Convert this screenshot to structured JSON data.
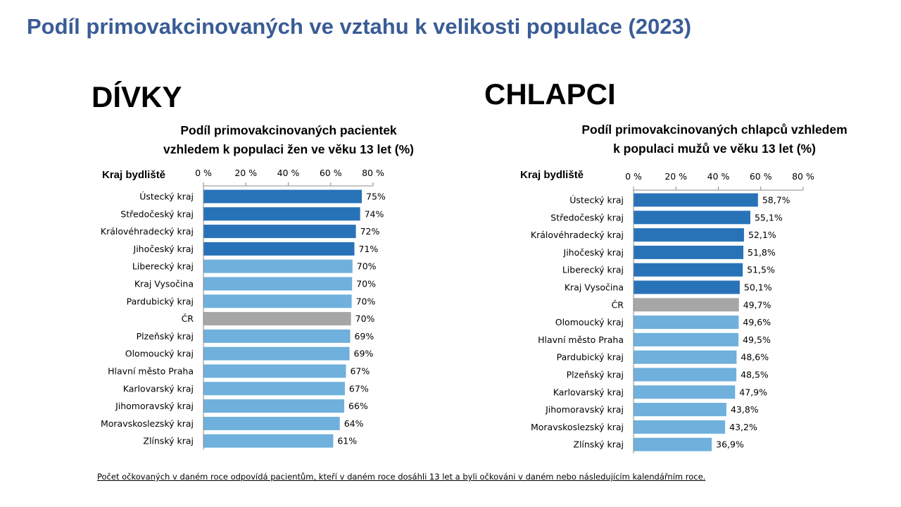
{
  "page": {
    "title": "Podíl primovakcinovaných ve vztahu k velikosti populace (2023)",
    "footnote": "Počet očkovaných v daném roce odpovídá pacientům, kteří v daném roce dosáhli 13 let a byli očkováni v daném nebo následujícím kalendářním roce."
  },
  "girls": {
    "heading": "DÍVKY",
    "title_line1": "Podíl primovakcinovaných pacientek",
    "title_line2": "vzhledem k populaci žen ve věku 13 let (%)"
  },
  "boys": {
    "heading": "CHLAPCI",
    "title_line1": "Podíl primovakcinovaných chlapců vzhledem",
    "title_line2": "k populaci mužů ve věku 13 let (%)"
  },
  "colors": {
    "top": "#2873b8",
    "rest": "#6fb0dc",
    "national": "#a6a6a6"
  },
  "chart_data": [
    {
      "type": "bar",
      "orientation": "horizontal",
      "title": "Podíl primovakcinovaných pacientek vzhledem k populaci žen ve věku 13 let (%)",
      "ylabel": "Kraj bydliště",
      "xlim": [
        0,
        80
      ],
      "xticks": [
        "0 %",
        "20 %",
        "40 %",
        "60 %",
        "80 %"
      ],
      "categories": [
        "Ústecký kraj",
        "Středočeský kraj",
        "Královéhradecký kraj",
        "Jihočeský kraj",
        "Liberecký kraj",
        "Kraj Vysočina",
        "Pardubický kraj",
        "ČR",
        "Plzeňský kraj",
        "Olomoucký kraj",
        "Hlavní město Praha",
        "Karlovarský kraj",
        "Jihomoravský kraj",
        "Moravskoslezský kraj",
        "Zlínský kraj"
      ],
      "values": [
        74.7,
        73.9,
        71.9,
        71.2,
        70.3,
        70.1,
        69.9,
        69.6,
        69.2,
        68.9,
        67.2,
        66.7,
        66.4,
        64.3,
        61.2
      ],
      "labels": [
        "75%",
        "74%",
        "72%",
        "71%",
        "70%",
        "70%",
        "70%",
        "70%",
        "69%",
        "69%",
        "67%",
        "67%",
        "66%",
        "64%",
        "61%"
      ],
      "bar_color_groups": [
        "top",
        "top",
        "top",
        "top",
        "rest",
        "rest",
        "rest",
        "national",
        "rest",
        "rest",
        "rest",
        "rest",
        "rest",
        "rest",
        "rest"
      ],
      "grid": false
    },
    {
      "type": "bar",
      "orientation": "horizontal",
      "title": "Podíl primovakcinovaných chlapců vzhledem k populaci mužů ve věku 13 let (%)",
      "ylabel": "Kraj bydliště",
      "xlim": [
        0,
        80
      ],
      "xticks": [
        "0 %",
        "20 %",
        "40 %",
        "60 %",
        "80 %"
      ],
      "categories": [
        "Ústecký kraj",
        "Středočeský kraj",
        "Královéhradecký kraj",
        "Jihočeský kraj",
        "Liberecký kraj",
        "Kraj Vysočina",
        "ČR",
        "Olomoucký kraj",
        "Hlavní město Praha",
        "Pardubický kraj",
        "Plzeňský kraj",
        "Karlovarský kraj",
        "Jihomoravský kraj",
        "Moravskoslezský kraj",
        "Zlínský kraj"
      ],
      "values": [
        58.7,
        55.1,
        52.1,
        51.8,
        51.5,
        50.1,
        49.7,
        49.6,
        49.5,
        48.6,
        48.5,
        47.9,
        43.8,
        43.2,
        36.9
      ],
      "labels": [
        "58,7%",
        "55,1%",
        "52,1%",
        "51,8%",
        "51,5%",
        "50,1%",
        "49,7%",
        "49,6%",
        "49,5%",
        "48,6%",
        "48,5%",
        "47,9%",
        "43,8%",
        "43,2%",
        "36,9%"
      ],
      "bar_color_groups": [
        "top",
        "top",
        "top",
        "top",
        "top",
        "top",
        "national",
        "rest",
        "rest",
        "rest",
        "rest",
        "rest",
        "rest",
        "rest",
        "rest"
      ],
      "grid": false
    }
  ]
}
